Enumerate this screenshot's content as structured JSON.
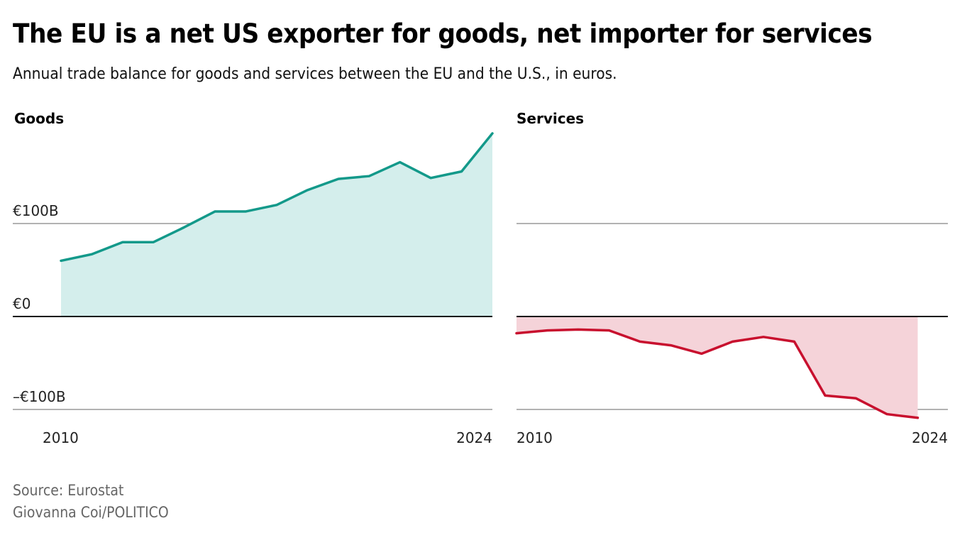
{
  "header": {
    "title": "The EU is a net US exporter for goods, net importer for services",
    "subtitle": "Annual trade balance for goods and services between the EU and the U.S., in euros."
  },
  "footer": {
    "source": "Source: Eurostat",
    "credit": "Giovanna Coi/POLITICO"
  },
  "colors": {
    "goods_line": "#13998a",
    "goods_fill": "#d4eeec",
    "services_line": "#c8102e",
    "services_fill": "#f5d3d9",
    "zero_line": "#111111",
    "grid_line": "#999999"
  },
  "chart_data": [
    {
      "type": "area",
      "title": "Goods",
      "xlabel": "",
      "ylabel": "",
      "x": [
        2010,
        2011,
        2012,
        2013,
        2014,
        2015,
        2016,
        2017,
        2018,
        2019,
        2020,
        2021,
        2022,
        2023,
        2024
      ],
      "values": [
        60,
        67,
        80,
        80,
        96,
        113,
        113,
        120,
        136,
        148,
        151,
        166,
        149,
        156,
        197
      ],
      "unit": "billion euros",
      "xlim": [
        2010,
        2024
      ],
      "ylim": [
        -100,
        200
      ],
      "y_ticks": [
        {
          "value": 100,
          "label": "€100B"
        },
        {
          "value": 0,
          "label": "€0"
        },
        {
          "value": -100,
          "label": "–€100B"
        }
      ],
      "x_ticks": [
        {
          "value": 2010,
          "label": "2010"
        },
        {
          "value": 2024,
          "label": "2024"
        }
      ],
      "grid": true
    },
    {
      "type": "area",
      "title": "Services",
      "xlabel": "",
      "ylabel": "",
      "x": [
        2010,
        2011,
        2012,
        2013,
        2014,
        2015,
        2016,
        2017,
        2018,
        2019,
        2020,
        2021,
        2022,
        2023
      ],
      "values": [
        -18,
        -15,
        -14,
        -15,
        -27,
        -31,
        -40,
        -27,
        -22,
        -27,
        -85,
        -88,
        -105,
        -109
      ],
      "unit": "billion euros",
      "xlim": [
        2010,
        2024
      ],
      "ylim": [
        -100,
        200
      ],
      "y_ticks": [
        {
          "value": 100,
          "label": ""
        },
        {
          "value": 0,
          "label": ""
        },
        {
          "value": -100,
          "label": ""
        }
      ],
      "x_ticks": [
        {
          "value": 2010,
          "label": "2010"
        },
        {
          "value": 2024,
          "label": "2024"
        }
      ],
      "grid": true
    }
  ]
}
